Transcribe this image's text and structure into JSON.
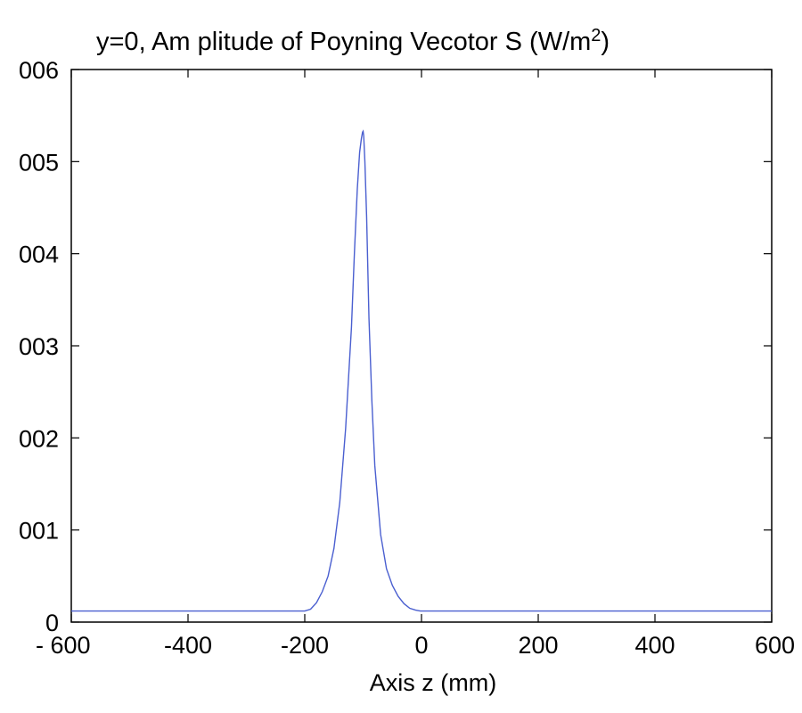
{
  "chart_data": {
    "type": "line",
    "title": {
      "main": "y=0,  Am plitude of Poyning Vecotor S (W/m",
      "superscript": "2",
      "suffix": ")"
    },
    "xlabel": "Axis z (mm)",
    "ylabel": "",
    "xlim": [
      -600,
      600
    ],
    "ylim": [
      0,
      0.06
    ],
    "x_ticks": [
      -600,
      -400,
      -200,
      0,
      200,
      400,
      600
    ],
    "x_tick_labels": [
      "- 600",
      "-400",
      "-200",
      "0",
      "200",
      "400",
      "600"
    ],
    "y_ticks": [
      0,
      0.01,
      0.02,
      0.03,
      0.04,
      0.05,
      0.06
    ],
    "y_tick_labels": [
      "0",
      "001",
      "002",
      "003",
      "004",
      "005",
      "006"
    ],
    "grid": false,
    "line_color": "#4a5fd0",
    "series": [
      {
        "x": [
          -600,
          -200,
          -190,
          -180,
          -170,
          -160,
          -150,
          -140,
          -130,
          -120,
          -115,
          -110,
          -106,
          -103,
          -101,
          -100,
          -99,
          -97,
          -94,
          -90,
          -85,
          -80,
          -70,
          -60,
          -50,
          -40,
          -30,
          -20,
          -10,
          -2,
          0,
          600
        ],
        "y": [
          0.0012,
          0.0012,
          0.0014,
          0.0021,
          0.0033,
          0.005,
          0.008,
          0.013,
          0.021,
          0.032,
          0.04,
          0.047,
          0.051,
          0.0525,
          0.0532,
          0.0533,
          0.0528,
          0.05,
          0.044,
          0.033,
          0.024,
          0.017,
          0.0095,
          0.0058,
          0.004,
          0.0028,
          0.002,
          0.0015,
          0.0013,
          0.0012,
          0.0012,
          0.0012
        ]
      }
    ]
  }
}
